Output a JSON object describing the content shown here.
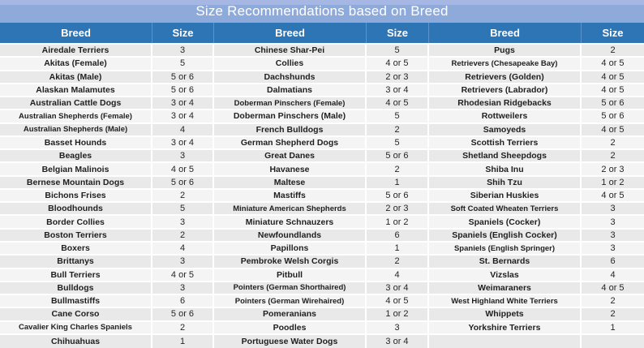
{
  "chart_data": {
    "type": "table",
    "title": "Size Recommendations based on Breed",
    "columns": [
      "Breed",
      "Size",
      "Breed",
      "Size",
      "Breed",
      "Size"
    ],
    "rows": [
      [
        "Airedale Terriers",
        "3",
        "Chinese Shar-Pei",
        "5",
        "Pugs",
        "2"
      ],
      [
        "Akitas (Female)",
        "5",
        "Collies",
        "4 or 5",
        "Retrievers (Chesapeake Bay)",
        "4 or 5"
      ],
      [
        "Akitas (Male)",
        "5 or 6",
        "Dachshunds",
        "2 or 3",
        "Retrievers (Golden)",
        "4 or 5"
      ],
      [
        "Alaskan Malamutes",
        "5 or 6",
        "Dalmatians",
        "3 or 4",
        "Retrievers (Labrador)",
        "4 or 5"
      ],
      [
        "Australian Cattle Dogs",
        "3 or 4",
        "Doberman Pinschers (Female)",
        "4 or 5",
        "Rhodesian Ridgebacks",
        "5 or 6"
      ],
      [
        "Australian Shepherds (Female)",
        "3 or 4",
        "Doberman Pinschers (Male)",
        "5",
        "Rottweilers",
        "5 or 6"
      ],
      [
        "Australian Shepherds (Male)",
        "4",
        "French Bulldogs",
        "2",
        "Samoyeds",
        "4 or 5"
      ],
      [
        "Basset Hounds",
        "3 or 4",
        "German Shepherd Dogs",
        "5",
        "Scottish Terriers",
        "2"
      ],
      [
        "Beagles",
        "3",
        "Great Danes",
        "5 or 6",
        "Shetland Sheepdogs",
        "2"
      ],
      [
        "Belgian Malinois",
        "4 or 5",
        "Havanese",
        "2",
        "Shiba Inu",
        "2 or 3"
      ],
      [
        "Bernese Mountain Dogs",
        "5 or 6",
        "Maltese",
        "1",
        "Shih Tzu",
        "1 or 2"
      ],
      [
        "Bichons Frises",
        "2",
        "Mastiffs",
        "5 or 6",
        "Siberian Huskies",
        "4 or 5"
      ],
      [
        "Bloodhounds",
        "5",
        "Miniature American Shepherds",
        "2 or 3",
        "Soft Coated Wheaten Terriers",
        "3"
      ],
      [
        "Border Collies",
        "3",
        "Miniature Schnauzers",
        "1 or 2",
        "Spaniels (Cocker)",
        "3"
      ],
      [
        "Boston Terriers",
        "2",
        "Newfoundlands",
        "6",
        "Spaniels (English Cocker)",
        "3"
      ],
      [
        "Boxers",
        "4",
        "Papillons",
        "1",
        "Spaniels (English Springer)",
        "3"
      ],
      [
        "Brittanys",
        "3",
        "Pembroke Welsh Corgis",
        "2",
        "St. Bernards",
        "6"
      ],
      [
        "Bull Terriers",
        "4 or 5",
        "Pitbull",
        "4",
        "Vizslas",
        "4"
      ],
      [
        "Bulldogs",
        "3",
        "Pointers (German Shorthaired)",
        "3 or 4",
        "Weimaraners",
        "4 or 5"
      ],
      [
        "Bullmastiffs",
        "6",
        "Pointers (German Wirehaired)",
        "4 or 5",
        "West Highland White Terriers",
        "2"
      ],
      [
        "Cane Corso",
        "5 or 6",
        "Pomeranians",
        "1 or 2",
        "Whippets",
        "2"
      ],
      [
        "Cavalier King Charles Spaniels",
        "2",
        "Poodles",
        "3",
        "Yorkshire Terriers",
        "1"
      ],
      [
        "Chihuahuas",
        "1",
        "Portuguese Water Dogs",
        "3 or 4",
        "",
        ""
      ]
    ]
  },
  "colors": {
    "title_bg": "#8EAADB",
    "title_bg_top": "#A6B7E3",
    "header_bg": "#2E75B6",
    "header_divider": "#5B94CC",
    "row_odd_bg": "#E9E9E9",
    "row_even_bg": "#F4F4F4",
    "grid_border": "#FFFFFF",
    "title_text": "#FFFFFF",
    "header_text": "#FFFFFF",
    "breed_text": "#1F1F1F",
    "size_text": "#262626"
  }
}
